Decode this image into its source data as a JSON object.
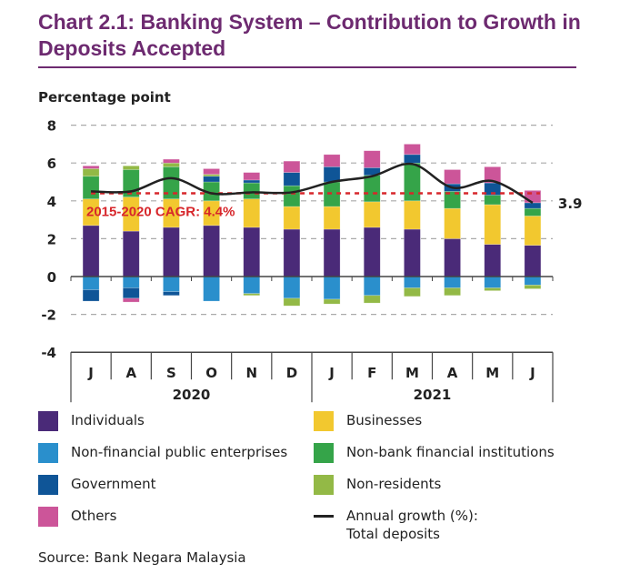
{
  "title": "Chart 2.1: Banking System – Contribution to Growth in Deposits Accepted",
  "source": "Source: Bank Negara Malaysia",
  "chart_data": {
    "type": "bar",
    "stacked": true,
    "ylabel": "Percentage point",
    "ylim": [
      -4,
      8
    ],
    "yticks": [
      -4,
      -2,
      0,
      2,
      4,
      6,
      8
    ],
    "grid": true,
    "legend_placement": "bottom",
    "categories": [
      "J",
      "A",
      "S",
      "O",
      "N",
      "D",
      "J",
      "F",
      "M",
      "A",
      "M",
      "J"
    ],
    "year_groups": [
      {
        "label": "2020",
        "count": 6
      },
      {
        "label": "2021",
        "count": 6
      }
    ],
    "series": [
      {
        "name": "Individuals",
        "color": "#4a2a78",
        "values": [
          2.7,
          2.4,
          2.6,
          2.7,
          2.6,
          2.5,
          2.5,
          2.6,
          2.5,
          2.0,
          1.7,
          1.65
        ]
      },
      {
        "name": "Businesses",
        "color": "#f2c82f",
        "values": [
          1.4,
          1.8,
          1.5,
          1.3,
          1.5,
          1.2,
          1.2,
          1.35,
          1.5,
          1.6,
          2.1,
          1.55
        ]
      },
      {
        "name": "Non-financial public enterprises",
        "color": "#2a8fcc",
        "values": [
          -0.7,
          -0.6,
          -0.8,
          -1.3,
          -0.9,
          -1.15,
          -1.2,
          -1.0,
          -0.6,
          -0.6,
          -0.6,
          -0.45
        ]
      },
      {
        "name": "Non-bank financial institutions",
        "color": "#35a449",
        "values": [
          1.2,
          1.45,
          1.7,
          1.0,
          0.85,
          1.1,
          1.3,
          1.4,
          2.0,
          0.9,
          0.5,
          0.4
        ]
      },
      {
        "name": "Government",
        "color": "#0f5597",
        "values": [
          -0.6,
          -0.55,
          -0.2,
          0.3,
          0.15,
          0.7,
          0.8,
          0.4,
          0.45,
          0.4,
          0.65,
          0.3
        ]
      },
      {
        "name": "Non-residents",
        "color": "#93b946",
        "values": [
          0.4,
          0.2,
          0.2,
          0.1,
          -0.1,
          -0.4,
          -0.25,
          -0.4,
          -0.45,
          -0.4,
          -0.15,
          -0.2
        ]
      },
      {
        "name": "Others",
        "color": "#cc5599",
        "values": [
          0.15,
          -0.2,
          0.2,
          0.3,
          0.4,
          0.6,
          0.65,
          0.9,
          0.55,
          0.75,
          0.85,
          0.65
        ]
      }
    ],
    "line": {
      "name": "Annual growth (%): Total deposits",
      "color": "#222222",
      "values": [
        4.5,
        4.5,
        5.2,
        4.4,
        4.45,
        4.45,
        5.0,
        5.3,
        5.95,
        4.7,
        5.05,
        3.9
      ]
    },
    "end_label": "3.9",
    "reference_line": {
      "label": "2015-2020 CAGR: 4.4%",
      "value": 4.4,
      "color": "#d7262b"
    }
  },
  "legend": [
    {
      "label": "Individuals",
      "color": "#4a2a78"
    },
    {
      "label": "Businesses",
      "color": "#f2c82f"
    },
    {
      "label": "Non-financial public enterprises",
      "color": "#2a8fcc"
    },
    {
      "label": "Non-bank financial institutions",
      "color": "#35a449"
    },
    {
      "label": "Government",
      "color": "#0f5597"
    },
    {
      "label": "Non-residents",
      "color": "#93b946"
    },
    {
      "label": "Others",
      "color": "#cc5599"
    },
    {
      "label": "Annual growth (%):\nTotal deposits",
      "type": "line"
    }
  ]
}
